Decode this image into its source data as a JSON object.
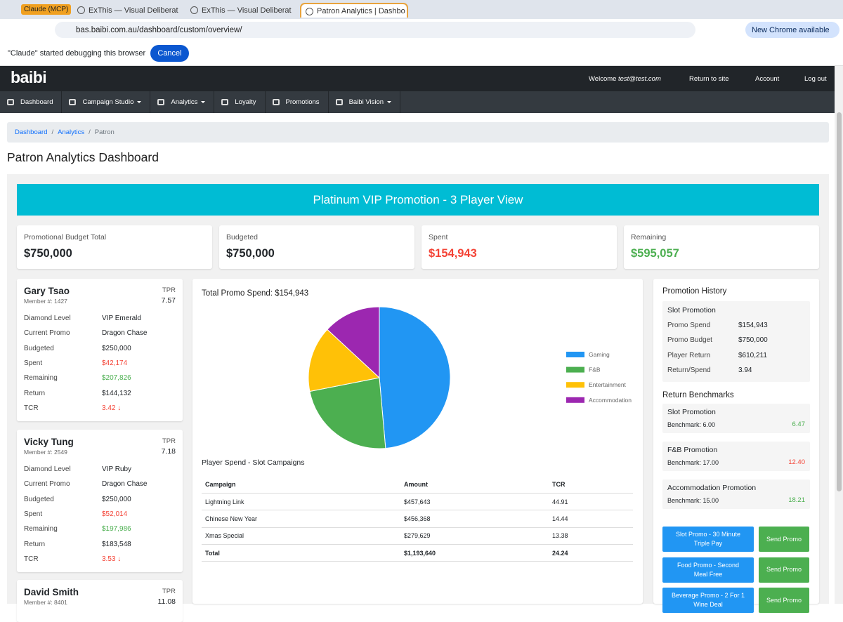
{
  "browser": {
    "tabs": [
      "Claude (MCP)",
      "ExThis — Visual Deliberat",
      "ExThis — Visual Deliberat",
      "Patron Analytics | Dashbo"
    ],
    "url": "bas.baibi.com.au/dashboard/custom/overview/",
    "update_button": "New Chrome available",
    "debug_message": "\"Claude\" started debugging this browser",
    "debug_cancel": "Cancel"
  },
  "header": {
    "logo": "baibi",
    "welcome": "Welcome",
    "user": "test@test.com",
    "links": [
      "Return to site",
      "Account",
      "Log out"
    ]
  },
  "nav": [
    "Dashboard",
    "Campaign Studio",
    "Analytics",
    "Loyalty",
    "Promotions",
    "Baibi Vision"
  ],
  "breadcrumb": [
    "Dashboard",
    "Analytics",
    "Patron"
  ],
  "page_title": "Patron Analytics Dashboard",
  "banner": "Platinum VIP Promotion - 3 Player View",
  "summary": [
    {
      "label": "Promotional Budget Total",
      "value": "$750,000"
    },
    {
      "label": "Budgeted",
      "value": "$750,000"
    },
    {
      "label": "Spent",
      "value": "$154,943"
    },
    {
      "label": "Remaining",
      "value": "$595,057"
    }
  ],
  "players": [
    {
      "name": "Gary Tsao",
      "member": "Member #: 1427",
      "tpr_label": "TPR",
      "tpr": "7.57",
      "rows": [
        [
          "Diamond Level",
          "VIP Emerald"
        ],
        [
          "Current Promo",
          "Dragon Chase"
        ],
        [
          "Budgeted",
          "$250,000"
        ],
        [
          "Spent",
          "$42,174"
        ],
        [
          "Remaining",
          "$207,826"
        ],
        [
          "Return",
          "$144,132"
        ],
        [
          "TCR",
          "3.42 ↓"
        ]
      ]
    },
    {
      "name": "Vicky Tung",
      "member": "Member #: 2549",
      "tpr_label": "TPR",
      "tpr": "7.18",
      "rows": [
        [
          "Diamond Level",
          "VIP Ruby"
        ],
        [
          "Current Promo",
          "Dragon Chase"
        ],
        [
          "Budgeted",
          "$250,000"
        ],
        [
          "Spent",
          "$52,014"
        ],
        [
          "Remaining",
          "$197,986"
        ],
        [
          "Return",
          "$183,548"
        ],
        [
          "TCR",
          "3.53 ↓"
        ]
      ]
    },
    {
      "name": "David Smith",
      "member": "Member #: 8401",
      "tpr_label": "TPR",
      "tpr": "11.08",
      "rows": []
    }
  ],
  "spend_chart": {
    "type": "pie",
    "title": "Total Promo Spend: $154,943",
    "categories": [
      "Gaming",
      "F&B",
      "Entertainment",
      "Accommodation"
    ],
    "values": [
      48.6,
      23.3,
      15.0,
      13.1
    ],
    "colors": [
      "#2196f3",
      "#4caf50",
      "#ffc107",
      "#9c27b0"
    ],
    "legend": "right"
  },
  "spend_table": {
    "title": "Player Spend - Slot Campaigns",
    "header": [
      "Campaign",
      "Amount",
      "TCR"
    ],
    "rows": [
      [
        "Lightning Link",
        "$457,643",
        "44.91"
      ],
      [
        "Chinese New Year",
        "$456,368",
        "14.44"
      ],
      [
        "Xmas Special",
        "$279,629",
        "13.38"
      ]
    ],
    "total": [
      "Total",
      "$1,193,640",
      "24.24"
    ]
  },
  "history": {
    "title": "Promotion History",
    "card_title": "Slot Promotion",
    "rows": [
      [
        "Promo Spend",
        "$154,943"
      ],
      [
        "Promo Budget",
        "$750,000"
      ],
      [
        "Player Return",
        "$610,211"
      ],
      [
        "Return/Spend",
        "3.94"
      ]
    ]
  },
  "benchmarks": {
    "title": "Return Benchmarks",
    "items": [
      {
        "name": "Slot Promotion",
        "benchmark": "Benchmark: 6.00",
        "value": "6.47"
      },
      {
        "name": "F&B Promotion",
        "benchmark": "Benchmark: 17.00",
        "value": "12.40"
      },
      {
        "name": "Accommodation Promotion",
        "benchmark": "Benchmark: 15.00",
        "value": "18.21"
      }
    ]
  },
  "actions": [
    {
      "label": "Slot Promo - 30 Minute Triple Pay",
      "button": "Send Promo"
    },
    {
      "label": "Food Promo - Second Meal Free",
      "button": "Send Promo"
    },
    {
      "label": "Beverage Promo - 2 For 1 Wine Deal",
      "button": "Send Promo"
    }
  ]
}
